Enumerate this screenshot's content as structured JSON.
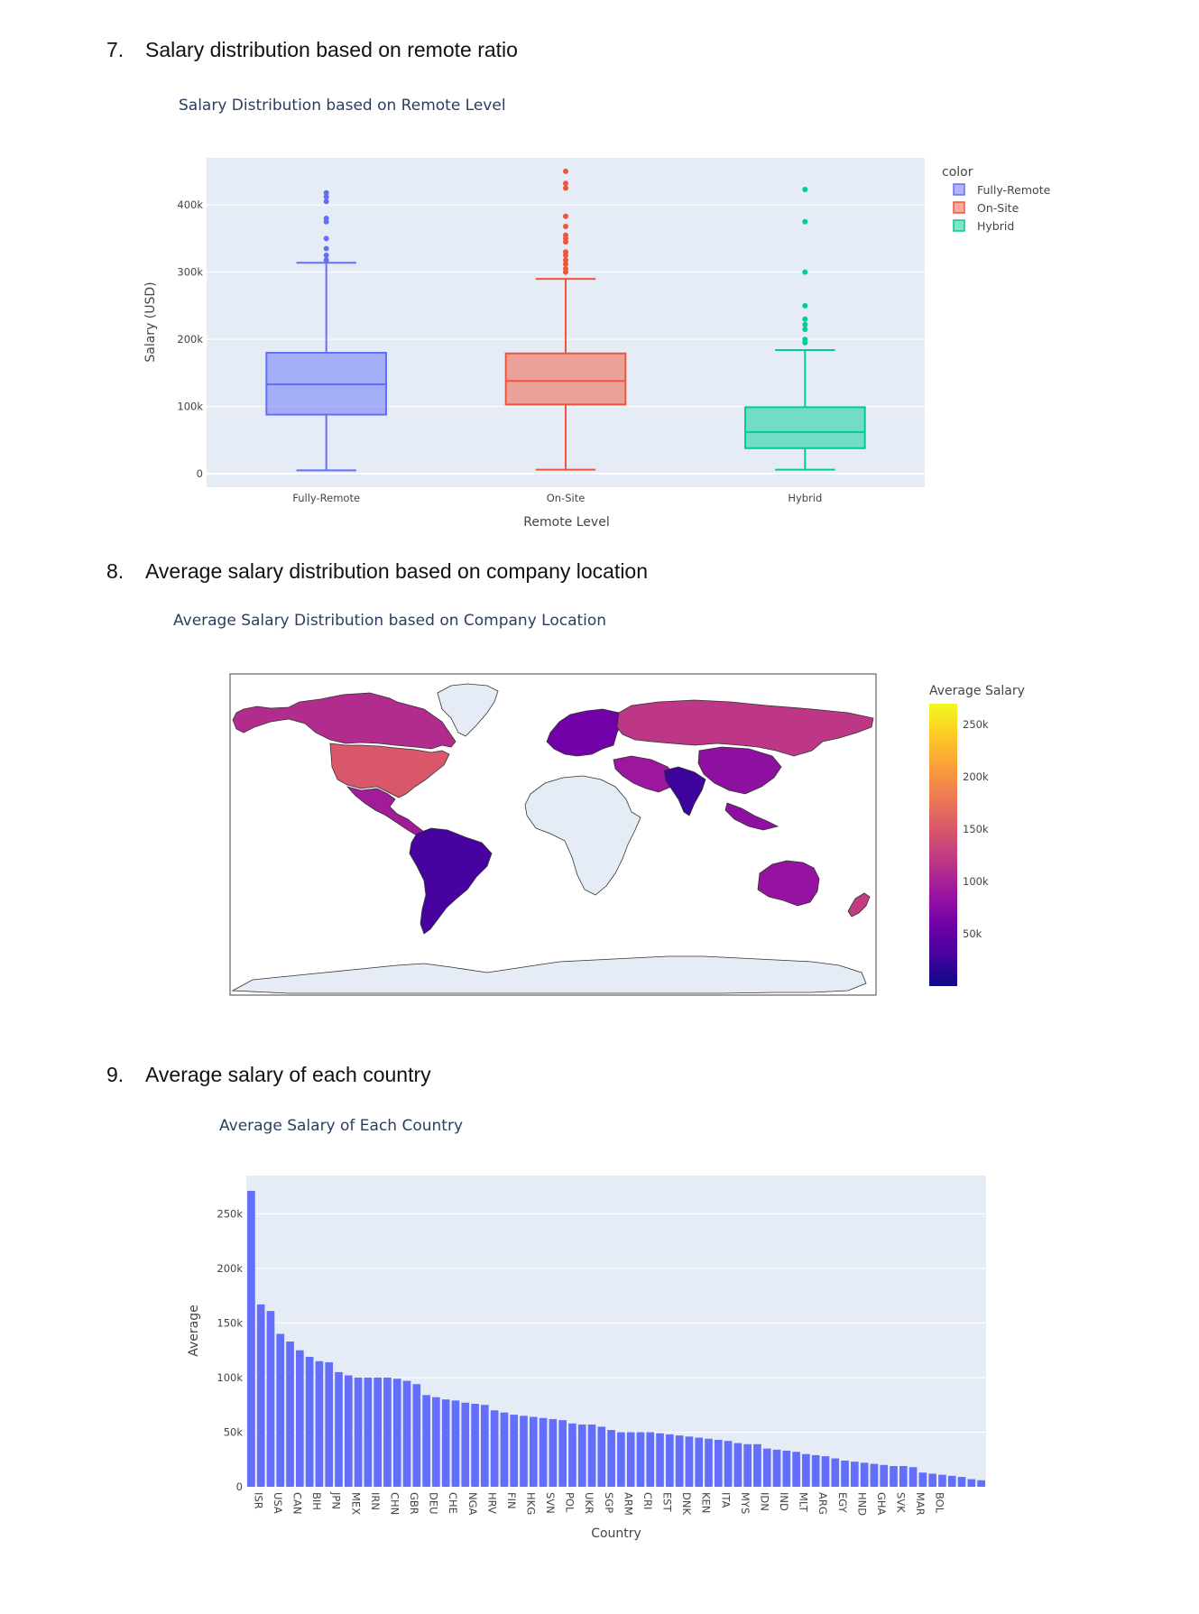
{
  "sections": [
    {
      "number": "7.",
      "heading": "Salary distribution based on remote ratio"
    },
    {
      "number": "8.",
      "heading": "Average salary distribution based on company location"
    },
    {
      "number": "9.",
      "heading": "Average salary of each country"
    }
  ],
  "chart_data": [
    {
      "type": "box",
      "title": "Salary Distribution based on Remote Level",
      "xlabel": "Remote Level",
      "ylabel": "Salary (USD)",
      "ylim": [
        -20000,
        470000
      ],
      "yticks": [
        0,
        100000,
        200000,
        300000,
        400000
      ],
      "ytick_labels": [
        "0",
        "100k",
        "200k",
        "300k",
        "400k"
      ],
      "legend": {
        "title": "color",
        "position": "top-right"
      },
      "series": [
        {
          "name": "Fully-Remote",
          "category": "Fully-Remote",
          "color": "#636efa",
          "min": 5000,
          "q1": 88000,
          "median": 133000,
          "q3": 180000,
          "max": 314000,
          "outliers": [
            318000,
            325000,
            335000,
            350000,
            375000,
            380000,
            405000,
            412000,
            418000
          ]
        },
        {
          "name": "On-Site",
          "category": "On-Site",
          "color": "#ef553b",
          "min": 6000,
          "q1": 103000,
          "median": 138000,
          "q3": 179000,
          "max": 290000,
          "outliers": [
            300000,
            305000,
            312000,
            318000,
            325000,
            330000,
            345000,
            350000,
            355000,
            368000,
            383000,
            425000,
            432000,
            450000
          ]
        },
        {
          "name": "Hybrid",
          "category": "Hybrid",
          "color": "#00cc96",
          "min": 6000,
          "q1": 38000,
          "median": 62000,
          "q3": 99000,
          "max": 184000,
          "outliers": [
            195000,
            200000,
            215000,
            222000,
            230000,
            250000,
            300000,
            375000,
            423000
          ]
        }
      ]
    },
    {
      "type": "choropleth",
      "title": "Average Salary Distribution based on Company Location",
      "colorbar_title": "Average Salary",
      "colorscale": "plasma",
      "range": [
        0,
        270000
      ],
      "colorbar_ticks": [
        50000,
        100000,
        150000,
        200000,
        250000
      ],
      "colorbar_tick_labels": [
        "50k",
        "100k",
        "150k",
        "200k",
        "250k"
      ],
      "regions": [
        {
          "name": "north-america-north",
          "value": 110000
        },
        {
          "name": "usa",
          "value": 150000
        },
        {
          "name": "greenland",
          "value": null
        },
        {
          "name": "mexico-central-america",
          "value": 95000
        },
        {
          "name": "south-america",
          "value": 30000
        },
        {
          "name": "europe",
          "value": 60000
        },
        {
          "name": "russia",
          "value": 120000
        },
        {
          "name": "middle-east",
          "value": 90000
        },
        {
          "name": "south-asia",
          "value": 25000
        },
        {
          "name": "east-asia",
          "value": 80000
        },
        {
          "name": "africa",
          "value": null
        },
        {
          "name": "australia",
          "value": 85000
        },
        {
          "name": "new-zealand",
          "value": 125000
        },
        {
          "name": "antarctica",
          "value": null
        }
      ]
    },
    {
      "type": "bar",
      "title": "Average Salary of Each Country",
      "xlabel": "Country",
      "ylabel": "Average",
      "ylim": [
        0,
        285000
      ],
      "yticks": [
        0,
        50000,
        100000,
        150000,
        200000,
        250000
      ],
      "ytick_labels": [
        "0",
        "50k",
        "100k",
        "150k",
        "200k",
        "250k"
      ],
      "bar_color": "#636efa",
      "tick_labels": [
        "ISR",
        "USA",
        "CAN",
        "BIH",
        "JPN",
        "MEX",
        "IRN",
        "CHN",
        "GBR",
        "DEU",
        "CHE",
        "NGA",
        "HRV",
        "FIN",
        "HKG",
        "SVN",
        "POL",
        "UKR",
        "SGP",
        "ARM",
        "CRI",
        "EST",
        "DNK",
        "KEN",
        "ITA",
        "MYS",
        "IDN",
        "IND",
        "MLT",
        "ARG",
        "EGY",
        "HND",
        "GHA",
        "SVK",
        "MAR",
        "BOL"
      ],
      "values": [
        271000,
        167000,
        161000,
        140000,
        133000,
        125000,
        119000,
        115000,
        114000,
        105000,
        102000,
        100000,
        100000,
        100000,
        100000,
        99000,
        97000,
        94000,
        84000,
        82000,
        80000,
        79000,
        77000,
        76000,
        75000,
        70000,
        68000,
        66000,
        65000,
        64000,
        63000,
        62000,
        61000,
        58000,
        57000,
        57000,
        55000,
        52000,
        50000,
        50000,
        50000,
        50000,
        49000,
        48000,
        47000,
        46000,
        45000,
        44000,
        43000,
        42000,
        40000,
        39000,
        39000,
        35000,
        34000,
        33000,
        32000,
        30000,
        29000,
        28000,
        26000,
        24000,
        23000,
        22000,
        21000,
        20000,
        19000,
        19000,
        18000,
        13000,
        12000,
        11000,
        10000,
        9000,
        7000,
        6000
      ]
    }
  ]
}
